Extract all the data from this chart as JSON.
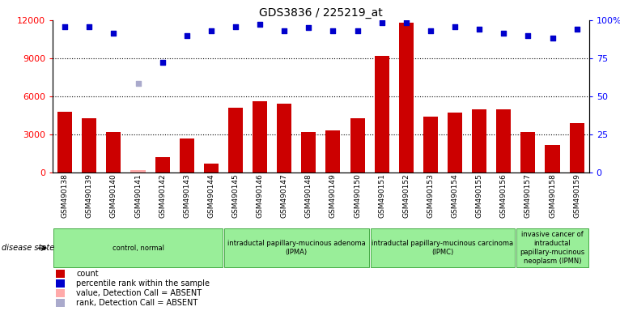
{
  "title": "GDS3836 / 225219_at",
  "samples": [
    "GSM490138",
    "GSM490139",
    "GSM490140",
    "GSM490141",
    "GSM490142",
    "GSM490143",
    "GSM490144",
    "GSM490145",
    "GSM490146",
    "GSM490147",
    "GSM490148",
    "GSM490149",
    "GSM490150",
    "GSM490151",
    "GSM490152",
    "GSM490153",
    "GSM490154",
    "GSM490155",
    "GSM490156",
    "GSM490157",
    "GSM490158",
    "GSM490159"
  ],
  "counts": [
    4800,
    4300,
    3200,
    200,
    1200,
    2700,
    700,
    5100,
    5600,
    5400,
    3200,
    3300,
    4300,
    9200,
    11800,
    4400,
    4700,
    5000,
    5000,
    3200,
    2200,
    3900
  ],
  "absent_count_indices": [
    3
  ],
  "absent_rank_indices": [
    3
  ],
  "percentile_ranks": [
    11500,
    11500,
    11000,
    7000,
    8700,
    10800,
    11200,
    11500,
    11700,
    11200,
    11400,
    11200,
    11200,
    11800,
    11800,
    11200,
    11500,
    11300,
    11000,
    10800,
    10600,
    11300
  ],
  "ylim_left": [
    0,
    12000
  ],
  "ylim_right": [
    0,
    100
  ],
  "yticks_left": [
    0,
    3000,
    6000,
    9000,
    12000
  ],
  "yticks_right": [
    0,
    25,
    50,
    75,
    100
  ],
  "bar_color": "#cc0000",
  "absent_bar_color": "#ffaaaa",
  "rank_color": "#0000cc",
  "absent_rank_color": "#aaaacc",
  "bar_width": 0.6,
  "groups": [
    {
      "label": "control, normal",
      "start": 0,
      "end": 7
    },
    {
      "label": "intraductal papillary-mucinous adenoma\n(IPMA)",
      "start": 7,
      "end": 13
    },
    {
      "label": "intraductal papillary-mucinous carcinoma\n(IPMC)",
      "start": 13,
      "end": 19
    },
    {
      "label": "invasive cancer of\nintraductal\npapillary-mucinous\nneoplasm (IPMN)",
      "start": 19,
      "end": 22
    }
  ],
  "group_fill": "#99ee99",
  "group_edge": "#44aa44",
  "tick_bg": "#cccccc",
  "disease_state_label": "disease state",
  "legend_items": [
    {
      "label": "count",
      "color": "#cc0000"
    },
    {
      "label": "percentile rank within the sample",
      "color": "#0000cc"
    },
    {
      "label": "value, Detection Call = ABSENT",
      "color": "#ffaaaa"
    },
    {
      "label": "rank, Detection Call = ABSENT",
      "color": "#aaaacc"
    }
  ],
  "title_fontsize": 10,
  "axis_label_fontsize": 8,
  "tick_label_fontsize": 6.5,
  "group_label_fontsize": 6,
  "legend_fontsize": 7
}
